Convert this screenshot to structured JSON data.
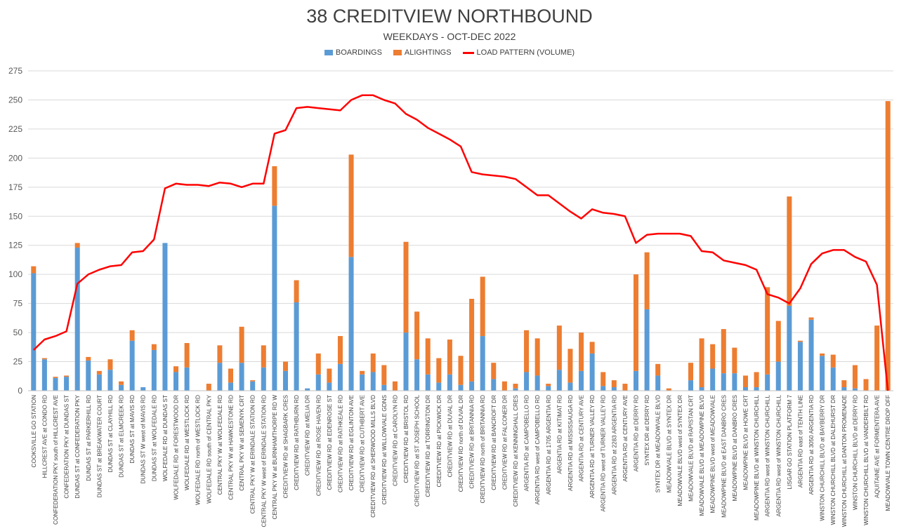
{
  "colors": {
    "boardings": "#5b9bd5",
    "alightings": "#ed7d31",
    "load": "#ff0000",
    "grid": "#d9d9d9"
  },
  "chart_data": {
    "type": "bar",
    "title": "38 CREDITVIEW NORTHBOUND",
    "subtitle": "WEEKDAYS - OCT-DEC 2022",
    "stacked": true,
    "legend_position": "top",
    "grid": true,
    "ylim": [
      0,
      275
    ],
    "yticks": [
      0,
      25,
      50,
      75,
      100,
      125,
      150,
      175,
      200,
      225,
      250,
      275
    ],
    "categories": [
      "COOKSVILLE GO STATION",
      "HILLCREST AVE at CONDO RD",
      "CONFEDERATION PKY south of HILLCREST AVE",
      "CONFEDERATION PKY at DUNDAS ST",
      "DUNDAS ST at CONFEDERATION PKY",
      "DUNDAS ST at PARKERHILL RD",
      "DUNDAS ST at BREAKWATER COURT",
      "DUNDAS ST at CLAYHILL RD",
      "DUNDAS ST at ELMCREEK RD",
      "DUNDAS ST at MAVIS RD",
      "DUNDAS ST W west of MAVIS RD",
      "DUNDAS ST at WOLFEDALE RD",
      "WOLFEDALE RD at DUNDAS ST",
      "WOLFEDALE RD at FORESTWOOD DR",
      "WOLFEDALE RD at WESTLOCK RD",
      "WOLFEDALE RD north of WESTLOCK RD",
      "WOLFEDALE RD south of CENTRAL PKY",
      "CENTRAL PKY W at WOLFEDALE RD",
      "CENTRAL PKY W at HAWKESTONE RD",
      "CENTRAL PKY W at SEMENYK CRT",
      "CENTRAL PKY W at ERINDALE STATION RD",
      "CENTRAL PKY W west of ERINDALE STATION RD",
      "CENTRAL PKY W at BURNHAMTHORPE RD W",
      "CREDITVIEW RD at SHAGBARK CRES",
      "CREDITVIEW RD at RATHBURN RD",
      "CREDITVIEW RD at MELIA DR",
      "CREDITVIEW RD at ROSE HAVEN RD",
      "CREDITVIEW RD at EDENROSE ST",
      "CREDITVIEW RD at RATHKEALE RD",
      "CREDITVIEW RD at EGLINTON AVE",
      "CREDITVIEW RD at CUTHBERT AVE",
      "CREDITVIEW RD at SHERWOOD MILLS BLVD",
      "CREDITVIEW RD at WILLOWVALE GDNS",
      "CREDITVIEW RD at CAROLYN RD",
      "CREDITVIEW RD at BRISTOL RD",
      "CREDITVIEW RD at ST JOSEPH  SCHOOL",
      "CREDITVIEW RD at TORRINGTON DR",
      "CREDITVIEW RD at PICKWICK DR",
      "CREDITVIEW RD at DUVAL DR",
      "CREDITVIEW RD north of DUVAL DR",
      "CREDITVIEW RD at BRITANNIA RD",
      "CREDITVIEW RD north of BRITANNIA RD",
      "CREDITVIEW RD at BANCROFT DR",
      "CREDITVIEW RD at FALCONER DR",
      "CREDITVIEW RD at KENNINGHALL CRES",
      "ARGENTIA RD at CAMPOBELLO RD",
      "ARGENTIA RD west of CAMPOBELLO RD",
      "ARGENTIA RD at 1705 ARGENTIA RD",
      "ARGENTIA RD at KITIMAT RD",
      "ARGENTIA RD at MISSISSAUGA RD",
      "ARGENTIA RD at CENTURY AVE",
      "ARGENTIA RD at TURNER VALLEY RD",
      "ARGENTIA RD west of TURNER VALLEY RD",
      "ARGENTIA RD at 2283 ARGENTIA RD",
      "ARGENTIA RD at CENTURY AVE",
      "ARGENTIA RD at DERRY RD",
      "SYNTEX DR at DERRY RD",
      "SYNTEX DR at MEADOWVALE BLVD",
      "MEADOWVALE BLVD at SYNTEX DR",
      "MEADOWVALE BLVD west of SYNTEX DR",
      "MEADOWVALE BLVD at RAPISTAN CRT",
      "MEADOWVALE BLVD at MEADOWPINE BLVD",
      "MEADOWPINE BLVD west of MEADOWVALE",
      "MEADOWPINE BLVD at EAST DANBRO CRES",
      "MEADOWPINE BLVD at DANBRO CRES",
      "MEADOWPINE BLVD at HOWE CRT",
      "MEADOWPINE BLVD at WINSTON CHURCHILL",
      "ARGENTIA RD west of WINSTON CHURCHILL",
      "ARGENTIA RD west of WINSTON CHURCHILL",
      "LISGAR GO STATION PLATFORM 7",
      "ARGENTIA RD east of TENTH LINE",
      "ARGENTIA RD at 3050 ARGENTIA RD",
      "WINSTON CHURCHILL BLVD at BAYBERRY DR",
      "WINSTON CHURCHILL BLVD at DALEHURST DR",
      "WINSTON CHURCHILL at DANTON PROMENADE",
      "WINSTON CHURCHILL BLVD at DERRY RD",
      "WINSTON CHURCHILL BLVD at VANDERBILT RD",
      "AQUITAINE AVE at FORMENTERA AVE",
      "MEADOWVALE TOWN CENTRE DROP OFF"
    ],
    "series": [
      {
        "name": "BOARDINGS",
        "type": "bar",
        "values": [
          101,
          27,
          11,
          12,
          123,
          26,
          14,
          18,
          5,
          43,
          3,
          35,
          127,
          16,
          20,
          0,
          0,
          24,
          7,
          24,
          8,
          20,
          159,
          17,
          76,
          2,
          14,
          7,
          23,
          115,
          14,
          16,
          5,
          0,
          50,
          27,
          14,
          7,
          14,
          5,
          8,
          47,
          10,
          0,
          2,
          16,
          13,
          4,
          18,
          7,
          17,
          32,
          4,
          3,
          0,
          17,
          70,
          13,
          0,
          0,
          9,
          3,
          19,
          15,
          15,
          3,
          3,
          14,
          25,
          73,
          42,
          61,
          30,
          20,
          3,
          2,
          0,
          0,
          0
        ]
      },
      {
        "name": "ALIGHTINGS",
        "type": "bar",
        "values": [
          6,
          1,
          1,
          1,
          4,
          3,
          3,
          9,
          3,
          9,
          0,
          5,
          0,
          5,
          21,
          0,
          6,
          15,
          12,
          31,
          1,
          19,
          34,
          8,
          19,
          0,
          18,
          12,
          24,
          88,
          3,
          16,
          17,
          8,
          78,
          41,
          31,
          21,
          30,
          25,
          71,
          51,
          14,
          8,
          4,
          36,
          32,
          2,
          38,
          29,
          33,
          10,
          12,
          6,
          6,
          83,
          49,
          10,
          2,
          0,
          15,
          42,
          21,
          38,
          22,
          10,
          13,
          75,
          35,
          94,
          1,
          2,
          2,
          11,
          6,
          20,
          10,
          56,
          249
        ]
      },
      {
        "name": "LOAD PATTERN (VOLUME)",
        "type": "line",
        "values": [
          35,
          44,
          47,
          51,
          92,
          100,
          104,
          107,
          108,
          119,
          120,
          130,
          174,
          178,
          177,
          177,
          176,
          179,
          178,
          175,
          178,
          178,
          221,
          224,
          243,
          244,
          243,
          242,
          241,
          250,
          254,
          254,
          250,
          247,
          238,
          233,
          226,
          221,
          216,
          210,
          188,
          186,
          185,
          184,
          182,
          175,
          168,
          168,
          161,
          154,
          148,
          156,
          153,
          152,
          150,
          127,
          134,
          135,
          135,
          135,
          133,
          120,
          119,
          112,
          110,
          108,
          104,
          83,
          80,
          75,
          88,
          109,
          118,
          121,
          121,
          115,
          111,
          91,
          0
        ]
      }
    ]
  }
}
